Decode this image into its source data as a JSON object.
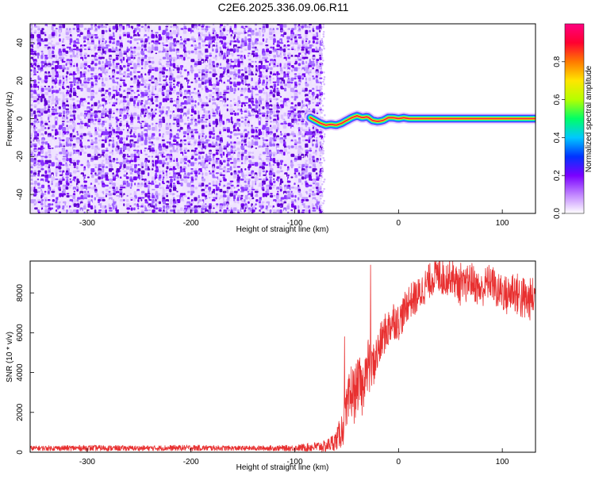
{
  "title": "C2E6.2025.336.09.06.R11",
  "chart_data": [
    {
      "type": "heatmap",
      "xlabel": "Height of straight line (km)",
      "ylabel": "Frequency (Hz)",
      "xlim": [
        -355,
        132
      ],
      "ylim": [
        -50,
        50
      ],
      "xticks": [
        -300,
        -200,
        -100,
        0,
        100
      ],
      "yticks": [
        -40,
        -20,
        0,
        20,
        40
      ],
      "noise_region_x": [
        -355,
        -75
      ],
      "ridge": {
        "x": [
          -85,
          -80,
          -75,
          -70,
          -65,
          -60,
          -55,
          -50,
          -45,
          -40,
          -35,
          -30,
          -25,
          -20,
          -15,
          -10,
          -5,
          0,
          5,
          10,
          15,
          20,
          30,
          50,
          80,
          110,
          132
        ],
        "y": [
          0.5,
          -1,
          -2.5,
          -3.5,
          -3,
          -3.5,
          -2.5,
          -1,
          0.5,
          1.5,
          0.5,
          1,
          -1,
          -1.5,
          -1,
          0.5,
          0.5,
          0,
          0.5,
          0,
          0,
          0,
          0,
          0,
          0,
          0,
          0
        ]
      },
      "colorbar": {
        "label": "Normalized spectral amplitude",
        "range": [
          0,
          1
        ],
        "ticks": [
          "0.0",
          "0.2",
          "0.4",
          "0.6",
          "0.8"
        ],
        "tick_values": [
          0,
          0.2,
          0.4,
          0.6,
          0.8
        ],
        "colors": [
          "#ffffff",
          "#c084ff",
          "#7a00ff",
          "#0033ff",
          "#00c8ff",
          "#00ff66",
          "#b4ff00",
          "#ffe600",
          "#ff7a00",
          "#ff0030",
          "#ff0080"
        ]
      },
      "grid": false
    },
    {
      "type": "line",
      "xlabel": "Height of straight line (km)",
      "ylabel": "SNR (10 * v/v)",
      "xlim": [
        -355,
        132
      ],
      "ylim": [
        0,
        9600
      ],
      "xticks": [
        -300,
        -200,
        -100,
        0,
        100
      ],
      "yticks": [
        0,
        2000,
        4000,
        6000,
        8000
      ],
      "color": "#e83030",
      "grid": false,
      "series": [
        {
          "x": [
            -355,
            -300,
            -250,
            -200,
            -150,
            -100,
            -70,
            -60,
            -55,
            -50,
            -47,
            -45,
            -43,
            -40,
            -37,
            -35,
            -32,
            -30,
            -29,
            -28,
            -25,
            -20,
            -15,
            -10,
            -5,
            0,
            5,
            10,
            15,
            20,
            25,
            30,
            35,
            40,
            45,
            50,
            55,
            60,
            65,
            70,
            75,
            80,
            85,
            90,
            95,
            100,
            105,
            110,
            115,
            120,
            125,
            132
          ],
          "y": [
            200,
            210,
            200,
            220,
            200,
            210,
            300,
            600,
            1100,
            1900,
            2600,
            3200,
            2800,
            3300,
            3500,
            3000,
            4200,
            3600,
            5200,
            4000,
            4300,
            5000,
            5800,
            6200,
            6700,
            6500,
            7000,
            7600,
            7700,
            7900,
            8300,
            8600,
            8900,
            8800,
            8700,
            8900,
            8600,
            8200,
            8400,
            8700,
            8300,
            8100,
            8500,
            8600,
            8000,
            8100,
            7800,
            8200,
            7900,
            7700,
            7600,
            7900
          ],
          "noise_amplitude": [
            120,
            150,
            130,
            150,
            120,
            150,
            300,
            500,
            900,
            1300,
            1600,
            1500,
            1400,
            1300,
            1300,
            1300,
            1300,
            1200,
            1200,
            1200,
            1100,
            1100,
            1000,
            1000,
            1000,
            900,
            900,
            900,
            900,
            900,
            900,
            900,
            900,
            900,
            900,
            900,
            900,
            900,
            900,
            900,
            900,
            900,
            900,
            900,
            900,
            1000,
            1000,
            1100,
            1100,
            1200,
            1100,
            1000
          ],
          "spikes": [
            {
              "x": -52,
              "y": 5800
            },
            {
              "x": -27,
              "y": 9400
            },
            {
              "x": 40,
              "y": 9650
            },
            {
              "x": 60,
              "y": 9500
            }
          ]
        }
      ]
    }
  ]
}
